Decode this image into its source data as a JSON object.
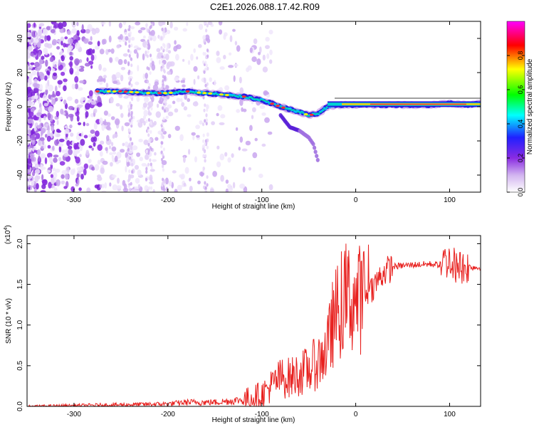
{
  "title": "C2E1.2026.088.17.42.R09",
  "chart_data": [
    {
      "type": "heatmap",
      "name": "spectrogram",
      "xlabel": "Height of straight line (km)",
      "ylabel": "Frequency (Hz)",
      "xlim": [
        -350,
        133
      ],
      "ylim": [
        -50,
        50
      ],
      "xticks": [
        -300,
        -200,
        -100,
        0,
        100
      ],
      "yticks": [
        -40,
        -20,
        0,
        20,
        40
      ],
      "colorbar": {
        "label": "Normalized spectral amplitude",
        "range": [
          0,
          1
        ],
        "ticks": [
          "0.0",
          "0.2",
          "0.4",
          "0.6",
          "0.8"
        ],
        "colormap": [
          "#ffffff",
          "#8a2be2",
          "#2020ff",
          "#00ffff",
          "#00ff00",
          "#ffff00",
          "#ff0000",
          "#ff00ff"
        ]
      },
      "ridge_track": {
        "x": [
          -275,
          -250,
          -220,
          -200,
          -180,
          -160,
          -140,
          -120,
          -100,
          -80,
          -60,
          -50,
          -40,
          -30,
          -20,
          0,
          20,
          40,
          60,
          80,
          100,
          120,
          133
        ],
        "y": [
          9,
          9,
          8,
          8,
          9,
          8,
          7,
          6,
          4,
          0,
          -3,
          -5,
          -4,
          0,
          1,
          1,
          1,
          1,
          1,
          1,
          2,
          1,
          2
        ]
      },
      "branch_track": {
        "x": [
          -80,
          -70,
          -60,
          -50,
          -45,
          -40
        ],
        "y": [
          -5,
          -12,
          -14,
          -18,
          -22,
          -32
        ]
      }
    },
    {
      "type": "line",
      "name": "snr",
      "xlabel": "Height of straight line (km)",
      "ylabel": "SNR (10 * v/v)",
      "scale_label": "(x10",
      "scale_exp": "4",
      "scale_close": ")",
      "xlim": [
        -350,
        133
      ],
      "ylim": [
        0,
        2.1
      ],
      "xticks": [
        -300,
        -200,
        -100,
        0,
        100
      ],
      "yticks": [
        "0.0",
        "0.5",
        "1.0",
        "1.5",
        "2.0"
      ],
      "color": "#e8201e",
      "x": [
        -350,
        -300,
        -250,
        -200,
        -180,
        -150,
        -120,
        -100,
        -90,
        -80,
        -70,
        -60,
        -50,
        -40,
        -30,
        -25,
        -20,
        -10,
        0,
        10,
        20,
        30,
        40,
        60,
        80,
        90,
        100,
        110,
        120,
        133
      ],
      "y": [
        0.0,
        0.01,
        0.02,
        0.03,
        0.05,
        0.05,
        0.08,
        0.15,
        0.25,
        0.35,
        0.35,
        0.4,
        0.45,
        0.55,
        0.7,
        1.0,
        1.15,
        1.35,
        1.3,
        1.35,
        1.5,
        1.65,
        1.72,
        1.74,
        1.75,
        1.74,
        1.8,
        1.7,
        1.72,
        1.7
      ]
    }
  ]
}
